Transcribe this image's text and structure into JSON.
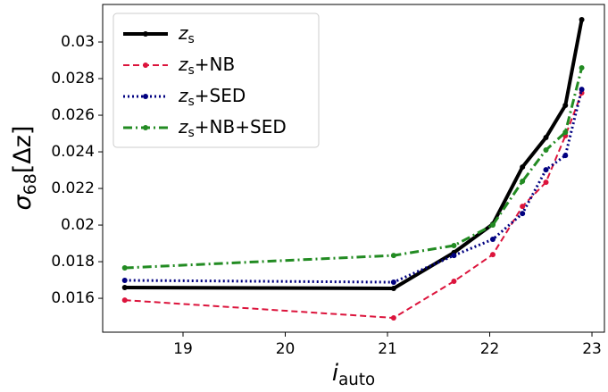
{
  "chart_data": {
    "type": "line",
    "xlabel": "iauto",
    "ylabel": "σ68[Δz]",
    "x": [
      18.43,
      21.06,
      21.65,
      22.03,
      22.32,
      22.55,
      22.74,
      22.9
    ],
    "series": [
      {
        "name": "zs",
        "color": "#000000",
        "linestyle": "solid",
        "values": [
          0.01659,
          0.01654,
          0.0185,
          0.02005,
          0.02317,
          0.02478,
          0.02654,
          0.03122
        ]
      },
      {
        "name": "zs+NB",
        "color": "#dc143c",
        "linestyle": "dashed",
        "values": [
          0.0159,
          0.01493,
          0.01693,
          0.01839,
          0.02102,
          0.02234,
          0.02488,
          0.02722
        ]
      },
      {
        "name": "zs+SED",
        "color": "#000080",
        "linestyle": "dotted",
        "values": [
          0.01698,
          0.01688,
          0.01834,
          0.01922,
          0.02063,
          0.02302,
          0.0238,
          0.02741
        ]
      },
      {
        "name": "zs+NB+SED",
        "color": "#228b22",
        "linestyle": "dashdot",
        "values": [
          0.01766,
          0.01834,
          0.01888,
          0.02,
          0.02239,
          0.0241,
          0.02507,
          0.02859
        ]
      }
    ],
    "xlim": [
      18.214,
      23.122
    ],
    "ylim": [
      0.01415,
      0.03205
    ],
    "xticks": [
      19,
      20,
      21,
      22,
      23
    ],
    "yticks": [
      0.016,
      0.018,
      0.02,
      0.022,
      0.024,
      0.026,
      0.028,
      0.03
    ],
    "legend": "upper-left"
  }
}
